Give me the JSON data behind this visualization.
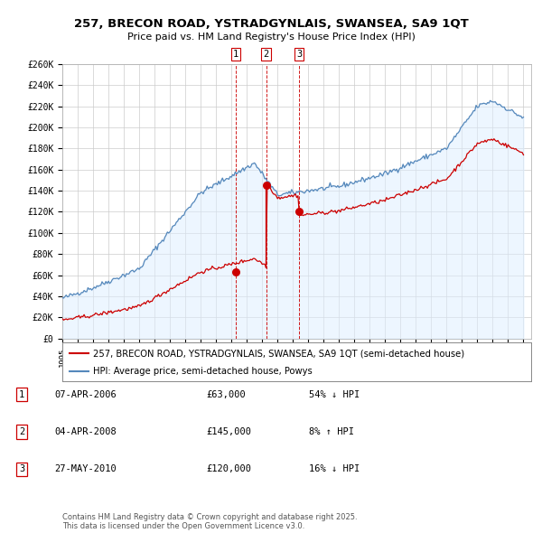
{
  "title": "257, BRECON ROAD, YSTRADGYNLAIS, SWANSEA, SA9 1QT",
  "subtitle": "Price paid vs. HM Land Registry's House Price Index (HPI)",
  "ylim": [
    0,
    260000
  ],
  "yticks": [
    0,
    20000,
    40000,
    60000,
    80000,
    100000,
    120000,
    140000,
    160000,
    180000,
    200000,
    220000,
    240000,
    260000
  ],
  "ytick_labels": [
    "£0",
    "£20K",
    "£40K",
    "£60K",
    "£80K",
    "£100K",
    "£120K",
    "£140K",
    "£160K",
    "£180K",
    "£200K",
    "£220K",
    "£240K",
    "£260K"
  ],
  "xlim_start": 1995.0,
  "xlim_end": 2025.5,
  "transaction_dates": [
    2006.27,
    2008.26,
    2010.41
  ],
  "transaction_prices": [
    63000,
    145000,
    120000
  ],
  "transaction_labels": [
    "1",
    "2",
    "3"
  ],
  "transaction_info": [
    {
      "label": "1",
      "date": "07-APR-2006",
      "price": "£63,000",
      "hpi": "54% ↓ HPI"
    },
    {
      "label": "2",
      "date": "04-APR-2008",
      "price": "£145,000",
      "hpi": "8% ↑ HPI"
    },
    {
      "label": "3",
      "date": "27-MAY-2010",
      "price": "£120,000",
      "hpi": "16% ↓ HPI"
    }
  ],
  "legend_red_label": "257, BRECON ROAD, YSTRADGYNLAIS, SWANSEA, SA9 1QT (semi-detached house)",
  "legend_blue_label": "HPI: Average price, semi-detached house, Powys",
  "footer": "Contains HM Land Registry data © Crown copyright and database right 2025.\nThis data is licensed under the Open Government Licence v3.0.",
  "red_color": "#cc0000",
  "blue_color": "#5588bb",
  "fill_color": "#ddeeff",
  "vline_color": "#cc0000",
  "grid_color": "#cccccc",
  "background_color": "#ffffff"
}
